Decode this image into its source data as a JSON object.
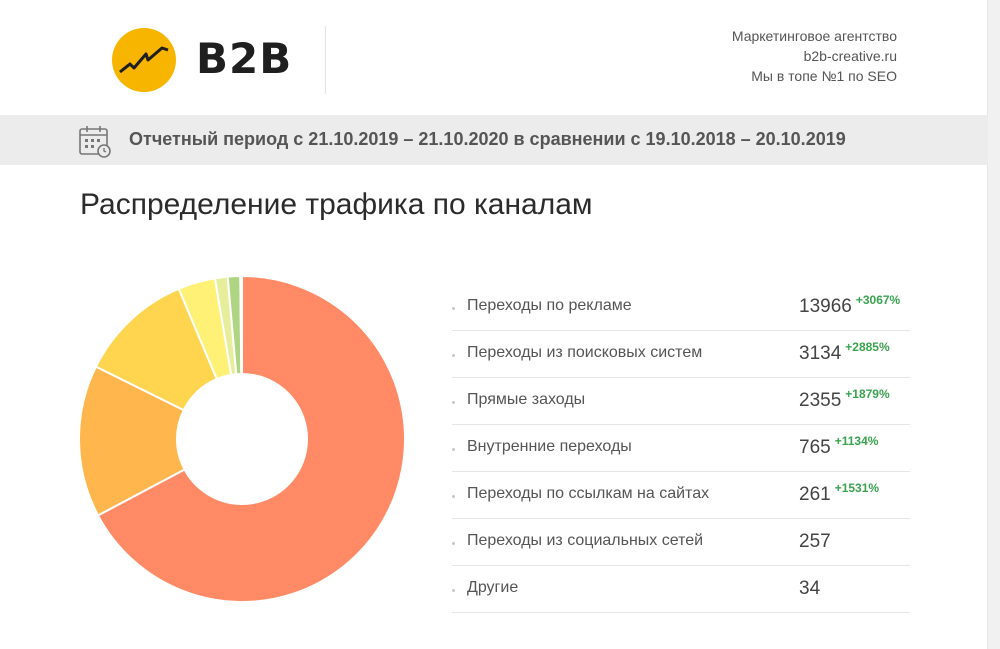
{
  "header": {
    "logo_text": "B2B",
    "agency_lines": [
      "Маркетинговое агентство",
      "b2b-creative.ru",
      "Мы в топе №1 по SEO"
    ],
    "logo_color": "#f7b500"
  },
  "period": {
    "text": "Отчетный период с 21.10.2019 – 21.10.2020 в сравнении с 19.10.2018 – 20.10.2019",
    "icon": "calendar-icon"
  },
  "chart_data": {
    "type": "pie",
    "title": "Распределение трафика по каналам",
    "donut": true,
    "categories": [
      "Переходы по рекламе",
      "Переходы из поисковых систем",
      "Прямые заходы",
      "Внутренние переходы",
      "Переходы по ссылкам на сайтах",
      "Переходы из социальных сетей",
      "Другие"
    ],
    "values": [
      13966,
      3134,
      2355,
      765,
      261,
      257,
      34
    ],
    "changes": [
      "+3067%",
      "+2885%",
      "+1879%",
      "+1134%",
      "+1531%",
      "",
      ""
    ],
    "colors": [
      "#ff8a65",
      "#ffb74d",
      "#ffd54f",
      "#fff176",
      "#e6ee9c",
      "#aed581",
      "#81c784"
    ],
    "legend_position": "right"
  }
}
